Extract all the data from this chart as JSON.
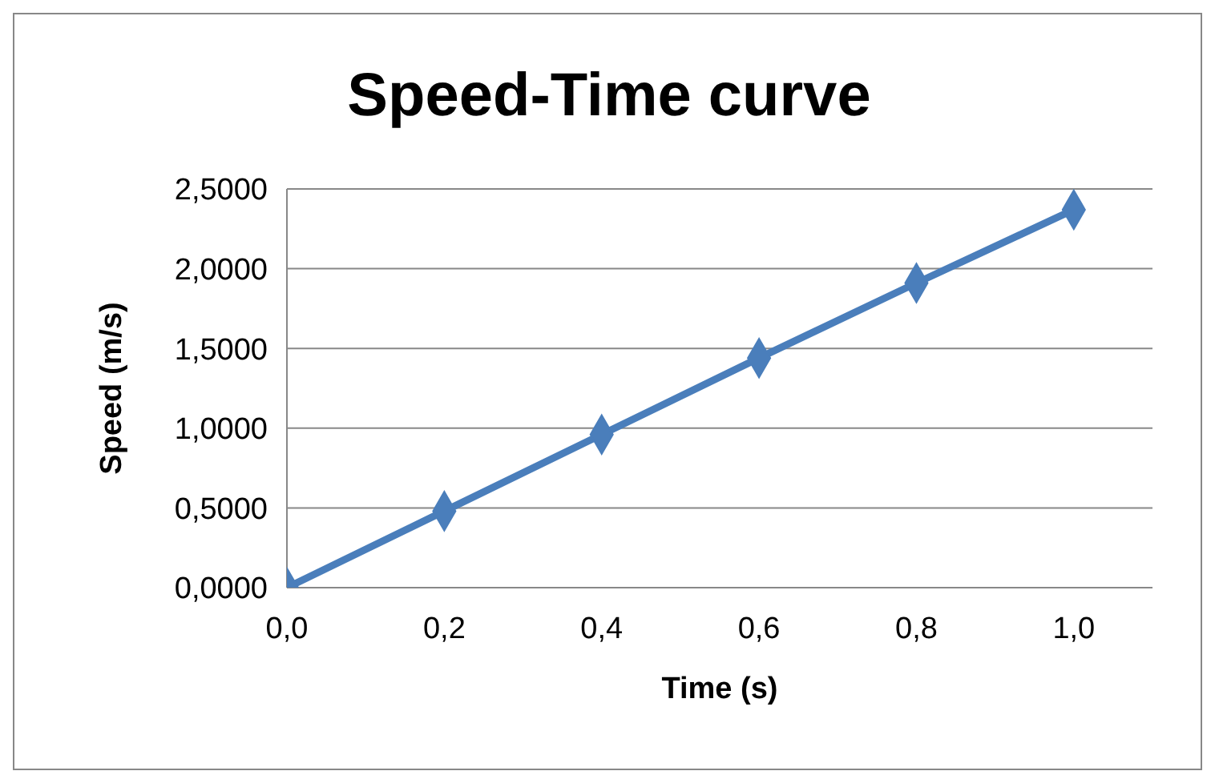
{
  "chart_data": {
    "type": "line",
    "title": "Speed-Time curve",
    "xlabel": "Time (s)",
    "ylabel": "Speed (m/s)",
    "x": [
      0,
      0.2,
      0.4,
      0.6,
      0.8,
      1.0
    ],
    "series": [
      {
        "color": "#4a7ebb",
        "values": [
          0,
          0.48,
          0.96,
          1.44,
          1.91,
          2.37
        ]
      }
    ],
    "xlim": [
      0,
      1.1
    ],
    "xticks": [
      {
        "value": 0,
        "label": "0,0"
      },
      {
        "value": 0.2,
        "label": "0,2"
      },
      {
        "value": 0.4,
        "label": "0,4"
      },
      {
        "value": 0.6,
        "label": "0,6"
      },
      {
        "value": 0.8,
        "label": "0,8"
      },
      {
        "value": 1.0,
        "label": "1,0"
      }
    ],
    "ylim": [
      0,
      2.5
    ],
    "yticks": [
      {
        "value": 0,
        "label": "0,0000"
      },
      {
        "value": 0.5,
        "label": "0,5000"
      },
      {
        "value": 1.0,
        "label": "1,0000"
      },
      {
        "value": 1.5,
        "label": "1,5000"
      },
      {
        "value": 2.0,
        "label": "2,0000"
      },
      {
        "value": 2.5,
        "label": "2,5000"
      }
    ],
    "grid": "y",
    "legend": false,
    "marker": "diamond",
    "line_style": "solid"
  }
}
